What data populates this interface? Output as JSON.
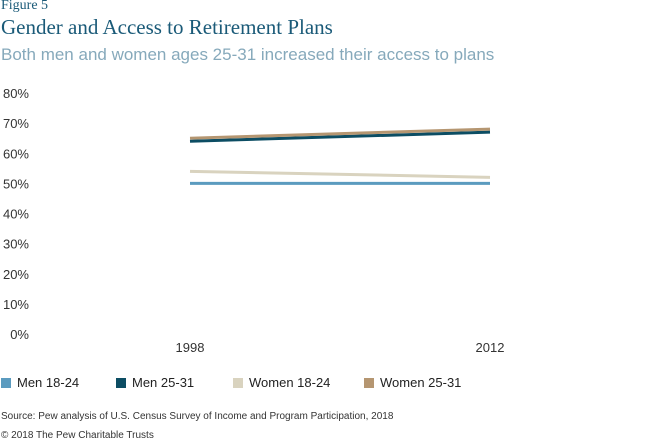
{
  "header": {
    "figure_label": "Figure 5",
    "title": "Gender and Access to Retirement Plans",
    "subtitle": "Both men and women ages 25-31 increased their access to plans"
  },
  "chart_data": {
    "type": "line",
    "title": "Gender and Access to Retirement Plans",
    "subtitle": "Both men and women ages 25-31 increased their access to plans",
    "x": [
      "1998",
      "2012"
    ],
    "ylim": [
      0,
      80
    ],
    "y_ticks": [
      "80%",
      "70%",
      "60%",
      "50%",
      "40%",
      "30%",
      "20%",
      "10%",
      "0%"
    ],
    "grid": false,
    "legend_position": "bottom",
    "series": [
      {
        "name": "Men 18-24",
        "values": [
          50,
          50
        ],
        "color": "#5b9bbf"
      },
      {
        "name": "Men 25-31",
        "values": [
          64,
          67
        ],
        "color": "#0c4d63"
      },
      {
        "name": "Women 18-24",
        "values": [
          54,
          52
        ],
        "color": "#d9d3bf"
      },
      {
        "name": "Women 25-31",
        "values": [
          65,
          68
        ],
        "color": "#b59671"
      }
    ]
  },
  "footer": {
    "source": "Source: Pew analysis of U.S. Census Survey of Income and Program Participation, 2018",
    "copyright": "© 2018 The Pew Charitable Trusts"
  }
}
